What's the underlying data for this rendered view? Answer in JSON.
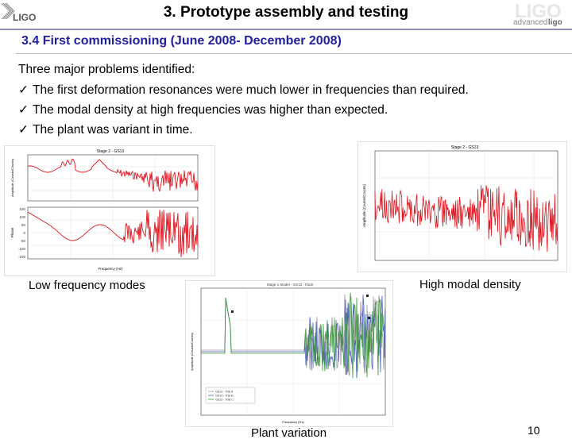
{
  "header": {
    "title": "3. Prototype assembly and testing",
    "logo_left": "LIGO",
    "logo_right": "advancedligo",
    "rule_color": "#9b8fb0"
  },
  "section": {
    "title": "3.4 First commissioning (June 2008- December 2008)",
    "color": "#1f1fa0"
  },
  "intro": "Three major problems identified:",
  "bullets": [
    "The first deformation resonances were much lower in frequencies than required.",
    "The modal density at high frequencies was higher than expected.",
    "The plant was variant in time."
  ],
  "check_glyph": "✓",
  "figures": {
    "low": {
      "caption": "Low frequency modes",
      "title": "Stage 2 - GS13",
      "xlabel": "Frequency (Hz)",
      "ylabel_top": "Amplitude (Counts/Counts)",
      "ylabel_bottom": "Phase",
      "phase_ticks": [
        "150",
        "100",
        "50",
        "0",
        "-50",
        "-100",
        "-150"
      ]
    },
    "high": {
      "caption": "High modal density",
      "title": "Stage 2 - GS13",
      "ylabel": "Amplitude (Counts/Counts)"
    },
    "plant": {
      "caption": "Plant variation",
      "title": "Stage 1 Model - GS13 - Rack",
      "xlabel": "Frequency (Hz)",
      "ylabel": "Amplitude (Counts/Counts)",
      "legend": [
        "GS13 - Trial A",
        "GS13 - Trial B",
        "GS13 - Trial C"
      ]
    }
  },
  "page_number": "10",
  "colors": {
    "trace_red": "#e0141e",
    "trace_blue": "#5060c0",
    "trace_green": "#3a9a3a",
    "trace_gray": "#999999"
  }
}
